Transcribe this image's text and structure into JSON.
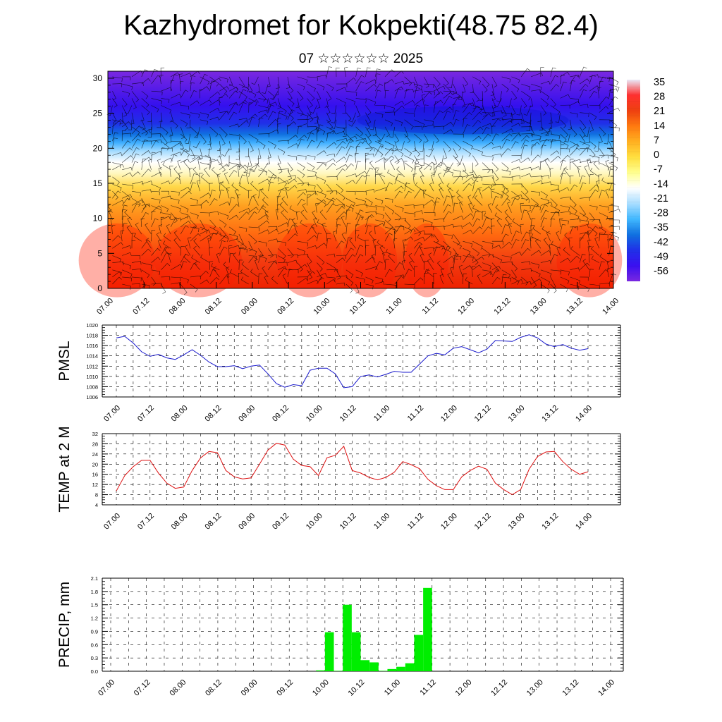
{
  "header": {
    "title": "Kazhydromet for Kokpekti(48.75 82.4)",
    "subtitle": "07 ☆☆☆☆☆☆ 2025"
  },
  "time_labels": [
    "07.00",
    "07.12",
    "08.00",
    "08.12",
    "09.00",
    "09.12",
    "10.00",
    "10.12",
    "11.00",
    "11.12",
    "12.00",
    "12.12",
    "13.00",
    "13.12",
    "14.00"
  ],
  "colors": {
    "pmsl_line": "#1a1acc",
    "temp_line": "#dd1111",
    "precip_bar": "#00ee00",
    "background": "#ffffff"
  },
  "chart_data": [
    {
      "type": "heatmap",
      "title": "",
      "ylim": [
        0,
        31
      ],
      "yticks": [
        0,
        5,
        10,
        15,
        20,
        25,
        30
      ],
      "x_labels": [
        "07.00",
        "07.12",
        "08.00",
        "08.12",
        "09.00",
        "09.12",
        "10.00",
        "10.12",
        "11.00",
        "11.12",
        "12.00",
        "12.12",
        "13.00",
        "13.12",
        "14.00"
      ],
      "colorbar_labels": [
        "35",
        "28",
        "21",
        "14",
        "7",
        "0",
        "-7",
        "-14",
        "-21",
        "-28",
        "-35",
        "-42",
        "-49",
        "-56"
      ],
      "overlay": "wind barbs",
      "colormap": [
        "#e8e8f8",
        "#ff3030",
        "#ee4010",
        "#ff7a10",
        "#ffb020",
        "#ffe040",
        "#ffff90",
        "#ffffff",
        "#a8ddff",
        "#40b8ff",
        "#1070e0",
        "#2030e8",
        "#3a10f0",
        "#7a28e0"
      ]
    },
    {
      "type": "line",
      "ylabel": "PMSL",
      "ylim": [
        1006,
        1020
      ],
      "yticks": [
        1006,
        1008,
        1010,
        1012,
        1014,
        1016,
        1018,
        1020
      ],
      "x": [
        0,
        3,
        6,
        9,
        12,
        15,
        18,
        21,
        24,
        27,
        30,
        33,
        36,
        39,
        42,
        45,
        48,
        51,
        54,
        57,
        60,
        63,
        66,
        69,
        72,
        75,
        78,
        81,
        84,
        87,
        90,
        93,
        96,
        99,
        102,
        105,
        108,
        111,
        114,
        117,
        120,
        123,
        126,
        129,
        132,
        135,
        138,
        141,
        144,
        147,
        150,
        153,
        156,
        159,
        162,
        165,
        168
      ],
      "values": [
        1017.5,
        1017.8,
        1016.5,
        1014.8,
        1013.9,
        1014.3,
        1013.6,
        1013.3,
        1014.2,
        1015.2,
        1014.1,
        1012.8,
        1011.9,
        1011.9,
        1012.1,
        1011.5,
        1012.0,
        1012.2,
        1010.5,
        1008.6,
        1007.9,
        1008.4,
        1008.2,
        1011.2,
        1011.6,
        1011.6,
        1010.5,
        1007.8,
        1008.0,
        1010.0,
        1010.3,
        1009.9,
        1010.4,
        1011.0,
        1010.8,
        1010.8,
        1012.4,
        1014.0,
        1014.5,
        1014.2,
        1015.5,
        1015.8,
        1015.2,
        1014.6,
        1015.3,
        1017.0,
        1016.9,
        1016.8,
        1017.6,
        1018.1,
        1017.5,
        1016.3,
        1015.8,
        1016.2,
        1015.5,
        1015.1,
        1015.4
      ],
      "x_labels": [
        "07.00",
        "07.12",
        "08.00",
        "08.12",
        "09.00",
        "09.12",
        "10.00",
        "10.12",
        "11.00",
        "11.12",
        "12.00",
        "12.12",
        "13.00",
        "13.12",
        "14.00"
      ]
    },
    {
      "type": "line",
      "ylabel": "TEMP at 2 M",
      "ylim": [
        4,
        32
      ],
      "yticks": [
        4,
        8,
        12,
        16,
        20,
        24,
        28,
        32
      ],
      "x": [
        0,
        3,
        6,
        9,
        12,
        15,
        18,
        21,
        24,
        27,
        30,
        33,
        36,
        39,
        42,
        45,
        48,
        51,
        54,
        57,
        60,
        63,
        66,
        69,
        72,
        75,
        78,
        81,
        84,
        87,
        90,
        93,
        96,
        99,
        102,
        105,
        108,
        111,
        114,
        117,
        120,
        123,
        126,
        129,
        132,
        135,
        138,
        141,
        144,
        147,
        150,
        153,
        156,
        159,
        162,
        165,
        168
      ],
      "values": [
        9.5,
        15.5,
        19.0,
        21.5,
        21.5,
        16.5,
        12.5,
        10.5,
        11.0,
        17.5,
        22.5,
        25.0,
        24.5,
        17.5,
        15.0,
        14.2,
        14.6,
        20.0,
        25.5,
        28.2,
        27.5,
        22.0,
        19.5,
        19.0,
        15.5,
        22.5,
        23.5,
        27.0,
        17.5,
        16.5,
        14.8,
        13.8,
        14.8,
        16.8,
        21.0,
        19.8,
        18.2,
        14.0,
        11.5,
        10.0,
        10.0,
        15.0,
        17.5,
        19.2,
        18.0,
        12.5,
        10.0,
        8.0,
        10.0,
        18.0,
        23.0,
        24.8,
        25.0,
        21.0,
        18.0,
        16.0,
        17.0
      ],
      "x_labels": [
        "07.00",
        "07.12",
        "08.00",
        "08.12",
        "09.00",
        "09.12",
        "10.00",
        "10.12",
        "11.00",
        "11.12",
        "12.00",
        "12.12",
        "13.00",
        "13.12",
        "14.00"
      ]
    },
    {
      "type": "bar",
      "ylabel": "PRECIP, mm",
      "ylim": [
        0,
        2.1
      ],
      "yticks": [
        "0.0",
        "0.3",
        "0.6",
        "0.9",
        "1.2",
        "1.5",
        "1.8",
        "2.1"
      ],
      "x_labels": [
        "07.00",
        "07.12",
        "08.00",
        "08.12",
        "09.00",
        "09.12",
        "10.00",
        "10.12",
        "11.00",
        "11.12",
        "12.00",
        "12.12",
        "13.00",
        "13.12",
        "14.00"
      ],
      "bars": [
        {
          "t0": 69,
          "t1": 72,
          "value": 0.02
        },
        {
          "t0": 72,
          "t1": 75,
          "value": 0.88
        },
        {
          "t0": 75,
          "t1": 78,
          "value": 0.01
        },
        {
          "t0": 78,
          "t1": 81,
          "value": 1.5
        },
        {
          "t0": 81,
          "t1": 84,
          "value": 0.88
        },
        {
          "t0": 84,
          "t1": 87,
          "value": 0.25
        },
        {
          "t0": 87,
          "t1": 90,
          "value": 0.2
        },
        {
          "t0": 90,
          "t1": 93,
          "value": 0.01
        },
        {
          "t0": 93,
          "t1": 96,
          "value": 0.05
        },
        {
          "t0": 96,
          "t1": 99,
          "value": 0.1
        },
        {
          "t0": 99,
          "t1": 102,
          "value": 0.18
        },
        {
          "t0": 102,
          "t1": 105,
          "value": 0.82
        },
        {
          "t0": 105,
          "t1": 108,
          "value": 1.88
        }
      ]
    }
  ]
}
